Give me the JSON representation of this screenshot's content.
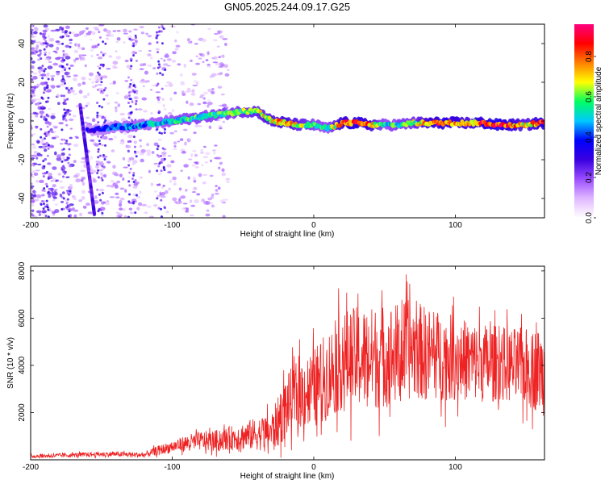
{
  "title": "GN05.2025.244.09.17.G25",
  "chart_data": [
    {
      "type": "heatmap",
      "name": "spectrogram",
      "xlabel": "Height of straight line (km)",
      "ylabel": "Frequency (Hz)",
      "xlim": [
        -200,
        163
      ],
      "ylim": [
        -50,
        50
      ],
      "xticks": [
        "-200",
        "-100",
        "0",
        "100"
      ],
      "yticks": [
        "-40",
        "-20",
        "0",
        "20",
        "40"
      ],
      "colorbar": {
        "label": "Normalized spectral amplitude",
        "range": [
          0,
          0.96
        ],
        "ticks": [
          "0.0",
          "0.2",
          "0.4",
          "0.6",
          "0.8"
        ],
        "colors": [
          "#ffffff",
          "#e0b8ff",
          "#9b4dff",
          "#3a00e0",
          "#0000ff",
          "#00c8ff",
          "#00ff60",
          "#ffff00",
          "#ff7f00",
          "#ff0000",
          "#ff0080"
        ]
      },
      "ridge_x": [
        -160,
        -150,
        -140,
        -130,
        -120,
        -110,
        -100,
        -90,
        -80,
        -70,
        -60,
        -50,
        -40,
        -30,
        -20,
        -10,
        0,
        10,
        20,
        30,
        40,
        50,
        60,
        70,
        80,
        90,
        100,
        110,
        120,
        130,
        140,
        150,
        160
      ],
      "ridge_freq": [
        -5,
        -4,
        -3,
        -3,
        -2,
        -1,
        0,
        1,
        2,
        3,
        4,
        5,
        5,
        0,
        -1,
        -2,
        -2,
        -4,
        -1,
        -1,
        -2,
        -2,
        -2,
        -1,
        -1,
        -1,
        -1,
        -1,
        -1,
        -2,
        -2,
        -2,
        -1
      ],
      "ridge_amp": [
        0.35,
        0.4,
        0.45,
        0.5,
        0.5,
        0.5,
        0.55,
        0.6,
        0.6,
        0.6,
        0.6,
        0.65,
        0.7,
        0.75,
        0.8,
        0.7,
        0.6,
        0.55,
        0.85,
        0.9,
        0.8,
        0.55,
        0.6,
        0.65,
        0.8,
        0.9,
        0.85,
        0.75,
        0.9,
        0.95,
        0.85,
        0.7,
        0.9
      ],
      "streak": {
        "x_start": -165,
        "freq_start": 8,
        "x_end": -155,
        "freq_end": -48
      }
    },
    {
      "type": "line",
      "name": "snr",
      "xlabel": "Height of straight line (km)",
      "ylabel": "SNR (10 * v/v)",
      "xlim": [
        -200,
        163
      ],
      "ylim": [
        0,
        8200
      ],
      "xticks": [
        "-200",
        "-100",
        "0",
        "100"
      ],
      "yticks": [
        "2000",
        "4000",
        "6000",
        "8000"
      ],
      "color": "#ee2222",
      "envelope_x": [
        -200,
        -180,
        -160,
        -140,
        -120,
        -110,
        -100,
        -90,
        -80,
        -70,
        -60,
        -50,
        -40,
        -30,
        -25,
        -20,
        -15,
        -10,
        -5,
        0,
        10,
        20,
        30,
        40,
        50,
        60,
        70,
        80,
        90,
        100,
        110,
        120,
        130,
        140,
        150,
        160,
        163
      ],
      "envelope_mean": [
        150,
        180,
        220,
        240,
        200,
        400,
        550,
        700,
        800,
        800,
        900,
        1000,
        1100,
        1200,
        1600,
        2200,
        2600,
        2800,
        2900,
        3000,
        3600,
        4200,
        4300,
        4300,
        4400,
        4500,
        4700,
        4500,
        4400,
        4300,
        4200,
        4100,
        4100,
        4000,
        3900,
        3800,
        3600
      ],
      "envelope_spread": [
        80,
        90,
        100,
        110,
        120,
        200,
        250,
        350,
        400,
        450,
        500,
        600,
        700,
        800,
        1100,
        1300,
        1400,
        1500,
        1600,
        1700,
        1900,
        2100,
        2200,
        2200,
        2200,
        2200,
        2100,
        2000,
        1900,
        1800,
        1700,
        1700,
        1600,
        1600,
        1700,
        1800,
        1800
      ]
    }
  ]
}
